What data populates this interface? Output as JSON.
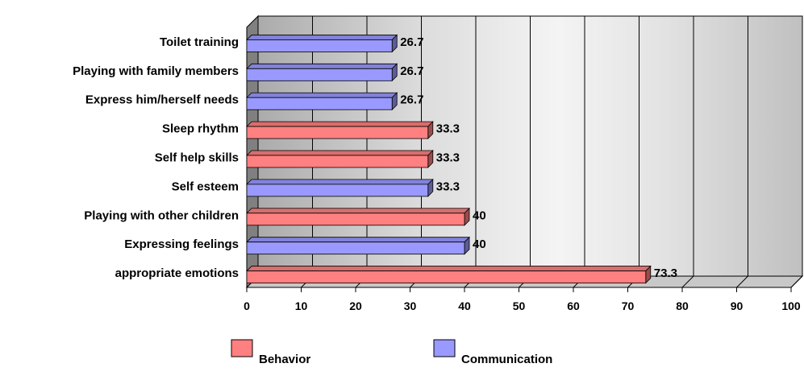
{
  "chart_data": {
    "type": "bar",
    "orientation": "horizontal",
    "three_d": true,
    "categories": [
      "Toilet training",
      "Playing with family members",
      "Express him/herself needs",
      "Sleep rhythm",
      "Self help skills",
      "Self esteem",
      "Playing with other children",
      "Expressing feelings",
      "appropriate emotions"
    ],
    "values": [
      26.7,
      26.7,
      26.7,
      33.3,
      33.3,
      33.3,
      40,
      40,
      73.3
    ],
    "value_labels": [
      "26.7",
      "26.7",
      "26.7",
      "33.3",
      "33.3",
      "33.3",
      "40",
      "40",
      "73.3"
    ],
    "groups": [
      "Communication",
      "Communication",
      "Communication",
      "Behavior",
      "Behavior",
      "Communication",
      "Behavior",
      "Communication",
      "Behavior"
    ],
    "series": [
      {
        "name": "Behavior",
        "color": "#ff8080"
      },
      {
        "name": "Communication",
        "color": "#9999ff"
      }
    ],
    "xlim": [
      0,
      100
    ],
    "xticks": [
      "0",
      "10",
      "20",
      "30",
      "40",
      "50",
      "60",
      "70",
      "80",
      "90",
      "100"
    ],
    "grid": true,
    "legend_position": "bottom"
  }
}
